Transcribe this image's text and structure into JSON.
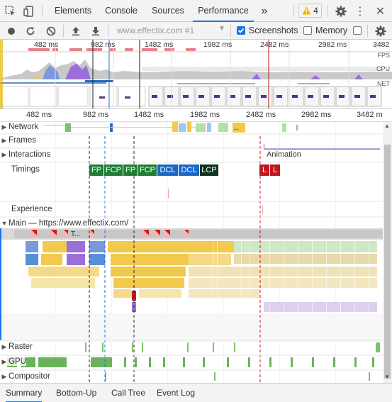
{
  "tabbar": {
    "tabs": [
      {
        "label": "Elements"
      },
      {
        "label": "Console"
      },
      {
        "label": "Sources"
      },
      {
        "label": "Performance",
        "active": true
      }
    ],
    "overflow": "»",
    "warning_count": "4"
  },
  "toolbar": {
    "url_selector": "www.effectix.com #1",
    "screenshots_label": "Screenshots",
    "screenshots_checked": true,
    "memory_label": "Memory",
    "memory_checked": false
  },
  "overview": {
    "ticks": [
      "482 ms",
      "982 ms",
      "1482 ms",
      "1982 ms",
      "2482 ms",
      "2982 ms",
      "3482"
    ],
    "labels": {
      "fps": "FPS",
      "cpu": "CPU",
      "net": "NET"
    }
  },
  "ruler": {
    "ticks": [
      "482 ms",
      "982 ms",
      "1482 ms",
      "1982 ms",
      "2482 ms",
      "2982 ms",
      "3482 m"
    ]
  },
  "tracks": {
    "network": "Network",
    "frames": "Frames",
    "interactions": "Interactions",
    "animation": "Animation",
    "timings": "Timings",
    "experience": "Experience",
    "main": "Main — https://www.effectix.com/",
    "raster": "Raster",
    "gpu": "GPU",
    "compositor": "Compositor"
  },
  "timing_marks": [
    {
      "label": "FP",
      "color": "#1e7e34"
    },
    {
      "label": "FCP",
      "color": "#1e7e34"
    },
    {
      "label": "FP",
      "color": "#1e7e34"
    },
    {
      "label": "FCP",
      "color": "#1e7e34"
    },
    {
      "label": "DCL",
      "color": "#1a67c7"
    },
    {
      "label": "DCL",
      "color": "#1a67c7"
    },
    {
      "label": "LCP",
      "color": "#10331f"
    },
    {
      "label": "L",
      "color": "#c0171f"
    },
    {
      "label": "L",
      "color": "#c0171f"
    }
  ],
  "main_first_task": "T...",
  "network_ellipsis": "...",
  "bottom_tabs": [
    {
      "label": "Summary",
      "active": true
    },
    {
      "label": "Bottom-Up"
    },
    {
      "label": "Call Tree"
    },
    {
      "label": "Event Log"
    }
  ]
}
